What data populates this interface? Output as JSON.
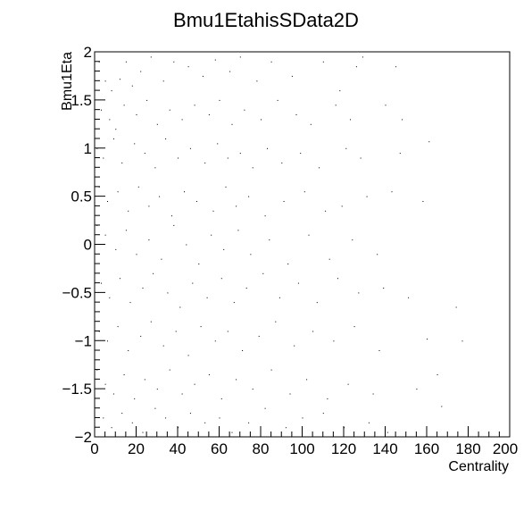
{
  "chart_data": {
    "type": "scatter",
    "title": "Bmu1EtahisSData2D",
    "xlabel": "Centrality",
    "ylabel": "Bmu1Eta",
    "xlim": [
      0,
      200
    ],
    "ylim": [
      -2,
      2
    ],
    "x_ticks": [
      "0",
      "20",
      "40",
      "60",
      "80",
      "100",
      "120",
      "140",
      "160",
      "180",
      "200"
    ],
    "y_ticks": [
      "−2",
      "−1.5",
      "−1",
      "−0.5",
      "0",
      "0.5",
      "1",
      "1.5",
      "2"
    ],
    "grid": false,
    "legend": "none",
    "marker_color": "#000000",
    "sample_points": [
      [
        2,
        1.9
      ],
      [
        5,
        1.7
      ],
      [
        8,
        1.6
      ],
      [
        12,
        1.72
      ],
      [
        15,
        1.9
      ],
      [
        18,
        1.65
      ],
      [
        22,
        1.8
      ],
      [
        27,
        1.95
      ],
      [
        33,
        1.7
      ],
      [
        38,
        1.9
      ],
      [
        45,
        1.85
      ],
      [
        52,
        1.75
      ],
      [
        58,
        1.92
      ],
      [
        65,
        1.8
      ],
      [
        70,
        1.95
      ],
      [
        78,
        1.7
      ],
      [
        85,
        1.9
      ],
      [
        95,
        1.75
      ],
      [
        110,
        1.9
      ],
      [
        118,
        1.6
      ],
      [
        126,
        1.85
      ],
      [
        129,
        1.95
      ],
      [
        145,
        1.85
      ],
      [
        3,
        1.4
      ],
      [
        7,
        1.3
      ],
      [
        10,
        1.2
      ],
      [
        14,
        1.45
      ],
      [
        20,
        1.35
      ],
      [
        25,
        1.5
      ],
      [
        30,
        1.25
      ],
      [
        36,
        1.4
      ],
      [
        42,
        1.3
      ],
      [
        48,
        1.45
      ],
      [
        55,
        1.35
      ],
      [
        60,
        1.5
      ],
      [
        66,
        1.25
      ],
      [
        72,
        1.4
      ],
      [
        80,
        1.3
      ],
      [
        88,
        1.5
      ],
      [
        97,
        1.35
      ],
      [
        104,
        1.25
      ],
      [
        116,
        1.45
      ],
      [
        123,
        1.3
      ],
      [
        140,
        1.45
      ],
      [
        148,
        1.3
      ],
      [
        1,
        1.0
      ],
      [
        4,
        0.9
      ],
      [
        9,
        1.1
      ],
      [
        13,
        0.85
      ],
      [
        19,
        1.05
      ],
      [
        24,
        0.95
      ],
      [
        29,
        0.8
      ],
      [
        34,
        1.1
      ],
      [
        40,
        0.9
      ],
      [
        46,
        1.0
      ],
      [
        53,
        0.85
      ],
      [
        59,
        1.05
      ],
      [
        64,
        0.9
      ],
      [
        70,
        0.95
      ],
      [
        76,
        0.8
      ],
      [
        83,
        1.0
      ],
      [
        90,
        0.85
      ],
      [
        99,
        0.95
      ],
      [
        108,
        0.8
      ],
      [
        121,
        1.0
      ],
      [
        128,
        0.9
      ],
      [
        147,
        0.95
      ],
      [
        161,
        1.07
      ],
      [
        2,
        0.6
      ],
      [
        6,
        0.45
      ],
      [
        11,
        0.55
      ],
      [
        16,
        0.35
      ],
      [
        21,
        0.6
      ],
      [
        26,
        0.4
      ],
      [
        31,
        0.5
      ],
      [
        37,
        0.3
      ],
      [
        43,
        0.55
      ],
      [
        49,
        0.45
      ],
      [
        57,
        0.35
      ],
      [
        63,
        0.6
      ],
      [
        68,
        0.4
      ],
      [
        74,
        0.5
      ],
      [
        82,
        0.3
      ],
      [
        91,
        0.45
      ],
      [
        101,
        0.55
      ],
      [
        111,
        0.35
      ],
      [
        119,
        0.4
      ],
      [
        131,
        0.5
      ],
      [
        143,
        0.55
      ],
      [
        158,
        0.45
      ],
      [
        1,
        0.2
      ],
      [
        5,
        0.1
      ],
      [
        10,
        -0.05
      ],
      [
        15,
        0.15
      ],
      [
        20,
        -0.1
      ],
      [
        26,
        0.05
      ],
      [
        32,
        -0.15
      ],
      [
        38,
        0.2
      ],
      [
        44,
        0.0
      ],
      [
        50,
        -0.2
      ],
      [
        56,
        0.1
      ],
      [
        62,
        -0.05
      ],
      [
        69,
        0.15
      ],
      [
        75,
        -0.1
      ],
      [
        84,
        0.05
      ],
      [
        93,
        -0.2
      ],
      [
        103,
        0.1
      ],
      [
        113,
        -0.15
      ],
      [
        124,
        0.05
      ],
      [
        136,
        -0.1
      ],
      [
        3,
        -0.4
      ],
      [
        7,
        -0.55
      ],
      [
        12,
        -0.35
      ],
      [
        17,
        -0.6
      ],
      [
        23,
        -0.45
      ],
      [
        28,
        -0.3
      ],
      [
        35,
        -0.5
      ],
      [
        41,
        -0.65
      ],
      [
        47,
        -0.4
      ],
      [
        54,
        -0.55
      ],
      [
        61,
        -0.35
      ],
      [
        67,
        -0.6
      ],
      [
        73,
        -0.45
      ],
      [
        81,
        -0.3
      ],
      [
        89,
        -0.55
      ],
      [
        98,
        -0.4
      ],
      [
        107,
        -0.6
      ],
      [
        117,
        -0.35
      ],
      [
        127,
        -0.5
      ],
      [
        139,
        -0.45
      ],
      [
        151,
        -0.55
      ],
      [
        174,
        -0.65
      ],
      [
        2,
        -0.9
      ],
      [
        6,
        -1.0
      ],
      [
        11,
        -0.85
      ],
      [
        16,
        -1.1
      ],
      [
        22,
        -0.95
      ],
      [
        27,
        -0.8
      ],
      [
        33,
        -1.05
      ],
      [
        39,
        -0.9
      ],
      [
        45,
        -1.15
      ],
      [
        51,
        -0.85
      ],
      [
        58,
        -1.0
      ],
      [
        64,
        -0.9
      ],
      [
        71,
        -1.1
      ],
      [
        79,
        -0.95
      ],
      [
        87,
        -0.8
      ],
      [
        96,
        -1.05
      ],
      [
        105,
        -0.9
      ],
      [
        115,
        -1.0
      ],
      [
        125,
        -0.85
      ],
      [
        137,
        -1.1
      ],
      [
        160,
        -0.98
      ],
      [
        177,
        -1.0
      ],
      [
        1,
        -1.3
      ],
      [
        5,
        -1.45
      ],
      [
        9,
        -1.55
      ],
      [
        14,
        -1.35
      ],
      [
        19,
        -1.6
      ],
      [
        24,
        -1.4
      ],
      [
        30,
        -1.5
      ],
      [
        36,
        -1.3
      ],
      [
        42,
        -1.55
      ],
      [
        48,
        -1.45
      ],
      [
        55,
        -1.35
      ],
      [
        61,
        -1.6
      ],
      [
        68,
        -1.4
      ],
      [
        76,
        -1.5
      ],
      [
        85,
        -1.3
      ],
      [
        94,
        -1.55
      ],
      [
        102,
        -1.4
      ],
      [
        112,
        -1.6
      ],
      [
        122,
        -1.45
      ],
      [
        134,
        -1.55
      ],
      [
        155,
        -1.5
      ],
      [
        165,
        -1.35
      ],
      [
        4,
        -1.8
      ],
      [
        8,
        -1.9
      ],
      [
        13,
        -1.75
      ],
      [
        18,
        -1.85
      ],
      [
        23,
        -1.95
      ],
      [
        29,
        -1.7
      ],
      [
        34,
        -1.8
      ],
      [
        40,
        -1.9
      ],
      [
        46,
        -1.75
      ],
      [
        53,
        -1.85
      ],
      [
        60,
        -1.8
      ],
      [
        66,
        -1.95
      ],
      [
        74,
        -1.85
      ],
      [
        82,
        -1.7
      ],
      [
        92,
        -1.9
      ],
      [
        100,
        -1.8
      ],
      [
        110,
        -1.75
      ],
      [
        120,
        -1.9
      ],
      [
        132,
        -1.85
      ],
      [
        141,
        -1.95
      ],
      [
        167,
        -1.68
      ]
    ]
  }
}
